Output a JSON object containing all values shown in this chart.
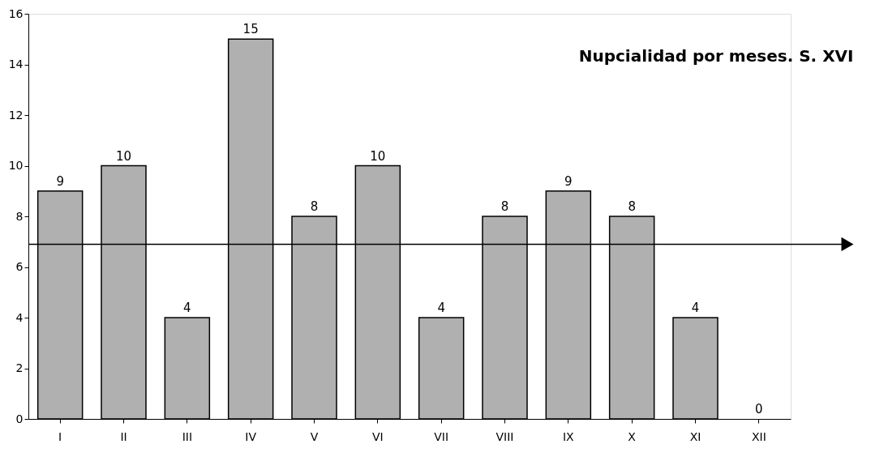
{
  "chart_data": {
    "type": "bar",
    "title": "Nupcialidad por meses. S. XVI",
    "categories": [
      "I",
      "II",
      "III",
      "IV",
      "V",
      "VI",
      "VII",
      "VIII",
      "IX",
      "X",
      "XI",
      "XII"
    ],
    "values": [
      9,
      10,
      4,
      15,
      8,
      10,
      4,
      8,
      9,
      8,
      4,
      0
    ],
    "color": "#b0b0b0",
    "ylim": [
      0,
      16
    ],
    "yticks": [
      0,
      2,
      4,
      6,
      8,
      10,
      12,
      14,
      16
    ],
    "grid": false,
    "data_labels": true,
    "ref_lines": [
      {
        "axis": "y",
        "value": 6.9,
        "color": "#000000"
      }
    ]
  }
}
